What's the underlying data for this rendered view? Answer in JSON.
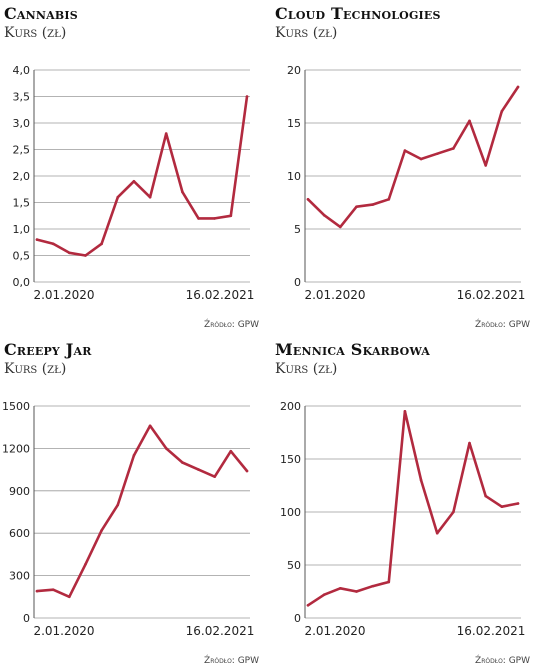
{
  "chart_data": [
    {
      "type": "line",
      "title": "Cannabis",
      "subtitle": "Kurs (zł)",
      "ylim": [
        0,
        4
      ],
      "y_ticks": [
        "0,0",
        "0,5",
        "1,0",
        "1,5",
        "2,0",
        "2,5",
        "3,0",
        "3,5",
        "4,0"
      ],
      "x_labels": [
        "2.01.2020",
        "16.02.2021"
      ],
      "x": [
        "2020-01",
        "2020-02",
        "2020-03",
        "2020-04",
        "2020-05",
        "2020-06",
        "2020-07",
        "2020-08",
        "2020-09",
        "2020-10",
        "2020-11",
        "2020-12",
        "2021-01",
        "2021-02"
      ],
      "series": [
        {
          "values": [
            0.8,
            0.72,
            0.55,
            0.5,
            0.72,
            1.6,
            1.9,
            1.6,
            2.8,
            1.7,
            1.2,
            1.2,
            1.25,
            3.5
          ]
        }
      ],
      "grid": "horizontal",
      "line_color": "#b22a3f",
      "source": "Źródło: GPW"
    },
    {
      "type": "line",
      "title": "Cloud Technologies",
      "subtitle": "Kurs (zł)",
      "ylim": [
        0,
        20
      ],
      "y_ticks": [
        "0",
        "5",
        "10",
        "15",
        "20"
      ],
      "x_labels": [
        "2.01.2020",
        "16.02.2021"
      ],
      "x": [
        "2020-01",
        "2020-02",
        "2020-03",
        "2020-04",
        "2020-05",
        "2020-06",
        "2020-07",
        "2020-08",
        "2020-09",
        "2020-10",
        "2020-11",
        "2020-12",
        "2021-01",
        "2021-02"
      ],
      "series": [
        {
          "values": [
            7.8,
            6.3,
            5.2,
            7.1,
            7.3,
            7.8,
            12.4,
            11.6,
            12.1,
            12.6,
            15.2,
            11.0,
            16.1,
            18.4
          ]
        }
      ],
      "grid": "horizontal",
      "line_color": "#b22a3f",
      "source": "Źródło: GPW"
    },
    {
      "type": "line",
      "title": "Creepy Jar",
      "subtitle": "Kurs (zł)",
      "ylim": [
        0,
        1500
      ],
      "y_ticks": [
        "0",
        "300",
        "600",
        "900",
        "1200",
        "1500"
      ],
      "x_labels": [
        "2.01.2020",
        "16.02.2021"
      ],
      "x": [
        "2020-01",
        "2020-02",
        "2020-03",
        "2020-04",
        "2020-05",
        "2020-06",
        "2020-07",
        "2020-08",
        "2020-09",
        "2020-10",
        "2020-11",
        "2020-12",
        "2021-01",
        "2021-02"
      ],
      "series": [
        {
          "values": [
            190,
            200,
            150,
            380,
            620,
            800,
            1150,
            1360,
            1200,
            1100,
            1050,
            1000,
            1180,
            1040
          ]
        }
      ],
      "grid": "horizontal",
      "line_color": "#b22a3f",
      "source": "Źródło: GPW"
    },
    {
      "type": "line",
      "title": "Mennica Skarbowa",
      "subtitle": "Kurs (zł)",
      "ylim": [
        0,
        200
      ],
      "y_ticks": [
        "0",
        "50",
        "100",
        "150",
        "200"
      ],
      "x_labels": [
        "2.01.2020",
        "16.02.2021"
      ],
      "x": [
        "2020-01",
        "2020-02",
        "2020-03",
        "2020-04",
        "2020-05",
        "2020-06",
        "2020-07",
        "2020-08",
        "2020-09",
        "2020-10",
        "2020-11",
        "2020-12",
        "2021-01",
        "2021-02"
      ],
      "series": [
        {
          "values": [
            12,
            22,
            28,
            25,
            30,
            34,
            195,
            130,
            80,
            100,
            165,
            115,
            105,
            108
          ]
        }
      ],
      "grid": "horizontal",
      "line_color": "#b22a3f",
      "source": "Źródło: GPW"
    }
  ]
}
